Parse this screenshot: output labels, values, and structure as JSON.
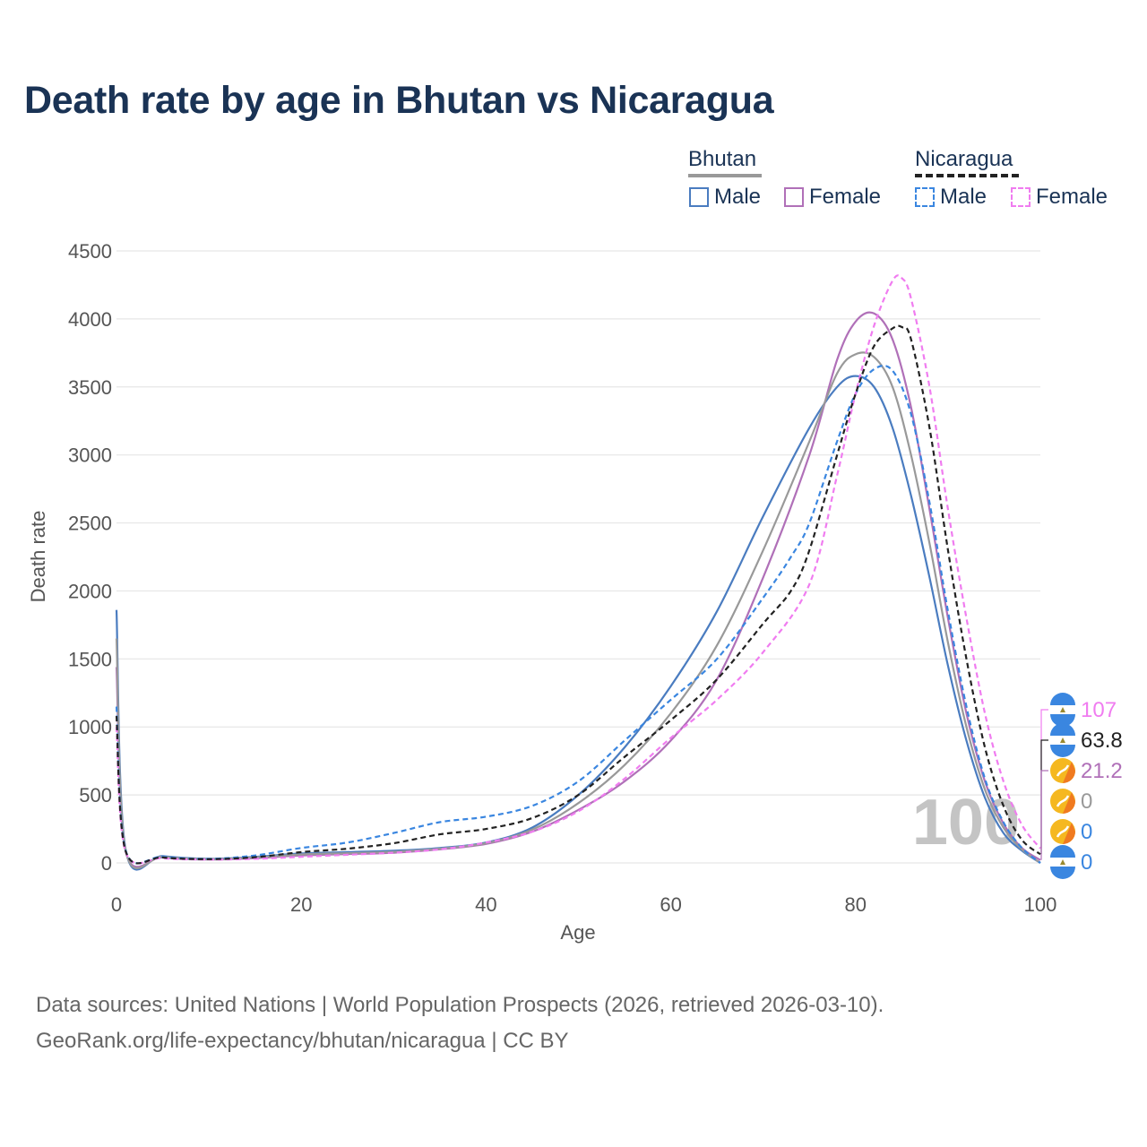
{
  "title": "Death rate by age in Bhutan vs Nicaragua",
  "legend": {
    "groups": [
      {
        "name": "Bhutan",
        "items": [
          "Male",
          "Female"
        ]
      },
      {
        "name": "Nicaragua",
        "items": [
          "Male",
          "Female"
        ]
      }
    ]
  },
  "watermark": "100",
  "footer": {
    "line1": "Data sources: United Nations | World Population Prospects (2026, retrieved 2026-03-10).",
    "line2": "GeoRank.org/life-expectancy/bhutan/nicaragua | CC BY"
  },
  "chart_data": {
    "type": "line",
    "title": "Death rate by age in Bhutan vs Nicaragua",
    "xlabel": "Age",
    "ylabel": "Death rate",
    "xlim": [
      0,
      100
    ],
    "ylim": [
      0,
      4500
    ],
    "x_ticks": [
      "0",
      "20",
      "40",
      "60",
      "80",
      "100"
    ],
    "y_ticks": [
      "0",
      "500",
      "1000",
      "1500",
      "2000",
      "2500",
      "3000",
      "3500",
      "4000",
      "4500"
    ],
    "grid": true,
    "series": [
      {
        "name": "Bhutan Male",
        "color": "#4a7cc0",
        "dash": false,
        "x": [
          0,
          1,
          5,
          10,
          15,
          20,
          25,
          30,
          35,
          40,
          45,
          50,
          55,
          60,
          65,
          70,
          75,
          78,
          80,
          82,
          84,
          86,
          88,
          90,
          92,
          94,
          96,
          98,
          100
        ],
        "y": [
          1860,
          95,
          50,
          30,
          45,
          70,
          80,
          90,
          110,
          150,
          260,
          500,
          850,
          1300,
          1850,
          2550,
          3200,
          3500,
          3580,
          3500,
          3200,
          2700,
          2100,
          1450,
          900,
          480,
          220,
          90,
          0
        ]
      },
      {
        "name": "Bhutan Female",
        "color": "#b070b8",
        "dash": false,
        "x": [
          0,
          1,
          5,
          10,
          15,
          20,
          25,
          30,
          35,
          40,
          45,
          50,
          55,
          60,
          65,
          70,
          75,
          78,
          80,
          82,
          84,
          86,
          88,
          90,
          92,
          94,
          96,
          98,
          100
        ],
        "y": [
          1440,
          85,
          40,
          25,
          35,
          55,
          65,
          75,
          100,
          140,
          230,
          390,
          600,
          900,
          1350,
          2100,
          3000,
          3700,
          3980,
          4040,
          3850,
          3350,
          2600,
          1800,
          1100,
          600,
          290,
          110,
          21.2
        ]
      },
      {
        "name": "Bhutan Total",
        "color": "#999999",
        "dash": false,
        "x": [
          0,
          1,
          5,
          10,
          15,
          20,
          25,
          30,
          35,
          40,
          45,
          50,
          55,
          60,
          65,
          70,
          75,
          78,
          80,
          82,
          84,
          86,
          88,
          90,
          92,
          94,
          96,
          98,
          100
        ],
        "y": [
          1650,
          90,
          45,
          28,
          40,
          62,
          72,
          82,
          105,
          145,
          245,
          440,
          720,
          1100,
          1600,
          2300,
          3100,
          3600,
          3740,
          3720,
          3500,
          3000,
          2350,
          1620,
          1000,
          540,
          260,
          100,
          0
        ]
      },
      {
        "name": "Nicaragua Male",
        "color": "#3a86e0",
        "dash": true,
        "x": [
          0,
          1,
          5,
          10,
          15,
          20,
          25,
          30,
          35,
          40,
          45,
          50,
          55,
          60,
          65,
          70,
          73,
          75,
          78,
          80,
          82,
          84,
          86,
          88,
          90,
          92,
          94,
          96,
          98,
          100
        ],
        "y": [
          1150,
          90,
          45,
          30,
          55,
          110,
          150,
          220,
          300,
          340,
          420,
          600,
          900,
          1200,
          1500,
          1950,
          2250,
          2500,
          3100,
          3450,
          3630,
          3620,
          3300,
          2650,
          1850,
          1150,
          620,
          300,
          110,
          0
        ]
      },
      {
        "name": "Nicaragua Female",
        "color": "#f07cf0",
        "dash": true,
        "x": [
          0,
          1,
          5,
          10,
          15,
          20,
          25,
          30,
          35,
          40,
          45,
          50,
          55,
          60,
          65,
          70,
          75,
          78,
          80,
          82,
          84,
          85,
          86,
          88,
          90,
          92,
          94,
          96,
          98,
          100
        ],
        "y": [
          1000,
          80,
          35,
          25,
          30,
          45,
          60,
          75,
          100,
          150,
          230,
          380,
          620,
          920,
          1200,
          1550,
          2050,
          2850,
          3450,
          3950,
          4280,
          4300,
          4150,
          3500,
          2600,
          1800,
          1100,
          600,
          280,
          107
        ]
      },
      {
        "name": "Nicaragua Total",
        "color": "#222222",
        "dash": true,
        "x": [
          0,
          1,
          5,
          10,
          15,
          20,
          25,
          30,
          35,
          40,
          45,
          50,
          55,
          60,
          65,
          70,
          73,
          75,
          78,
          80,
          82,
          84,
          85,
          86,
          88,
          90,
          92,
          94,
          96,
          98,
          100
        ],
        "y": [
          1080,
          85,
          40,
          28,
          42,
          80,
          105,
          145,
          210,
          250,
          330,
          500,
          780,
          1050,
          1350,
          1760,
          2000,
          2300,
          3000,
          3450,
          3800,
          3930,
          3940,
          3850,
          3200,
          2300,
          1500,
          850,
          420,
          170,
          63.8
        ]
      }
    ],
    "end_labels": [
      {
        "value": "107",
        "color": "#f07cf0",
        "flag": "nicaragua"
      },
      {
        "value": "63.8",
        "color": "#222222",
        "flag": "nicaragua"
      },
      {
        "value": "21.2",
        "color": "#b070b8",
        "flag": "bhutan"
      },
      {
        "value": "0",
        "color": "#999999",
        "flag": "bhutan"
      },
      {
        "value": "0",
        "color": "#3a86e0",
        "flag": "bhutan"
      },
      {
        "value": "0",
        "color": "#3a86e0",
        "flag": "nicaragua"
      }
    ]
  }
}
